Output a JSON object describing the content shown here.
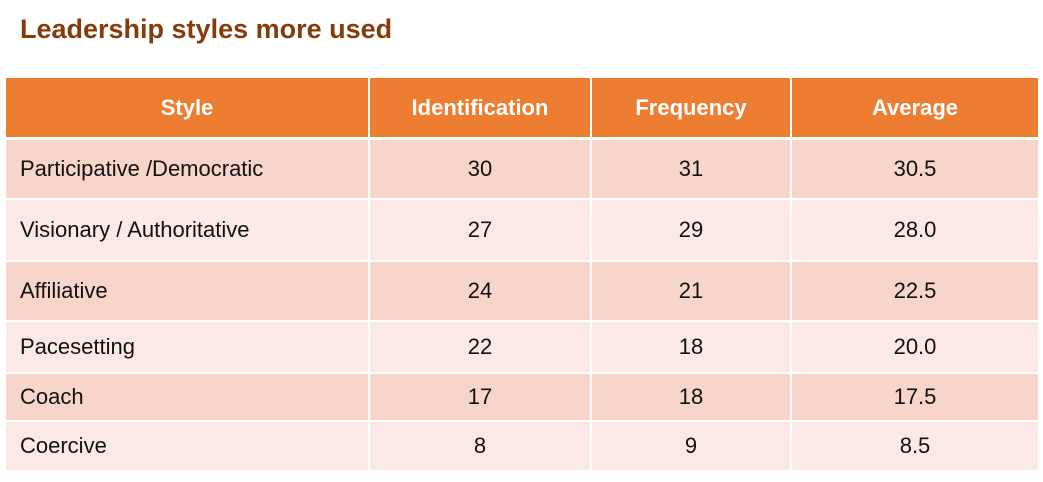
{
  "header": {
    "title": "Leadership styles more used"
  },
  "table": {
    "columns": [
      "Style",
      "Identification",
      "Frequency",
      "Average"
    ],
    "rows": [
      [
        "Participative /Democratic",
        "30",
        "31",
        "30.5"
      ],
      [
        "Visionary / Authoritative",
        "27",
        "29",
        "28.0"
      ],
      [
        "Affiliative",
        "24",
        "21",
        "22.5"
      ],
      [
        "Pacesetting",
        "22",
        "18",
        "20.0"
      ],
      [
        "Coach",
        "17",
        "18",
        "17.5"
      ],
      [
        "Coercive",
        "8",
        "9",
        "8.5"
      ]
    ]
  }
}
